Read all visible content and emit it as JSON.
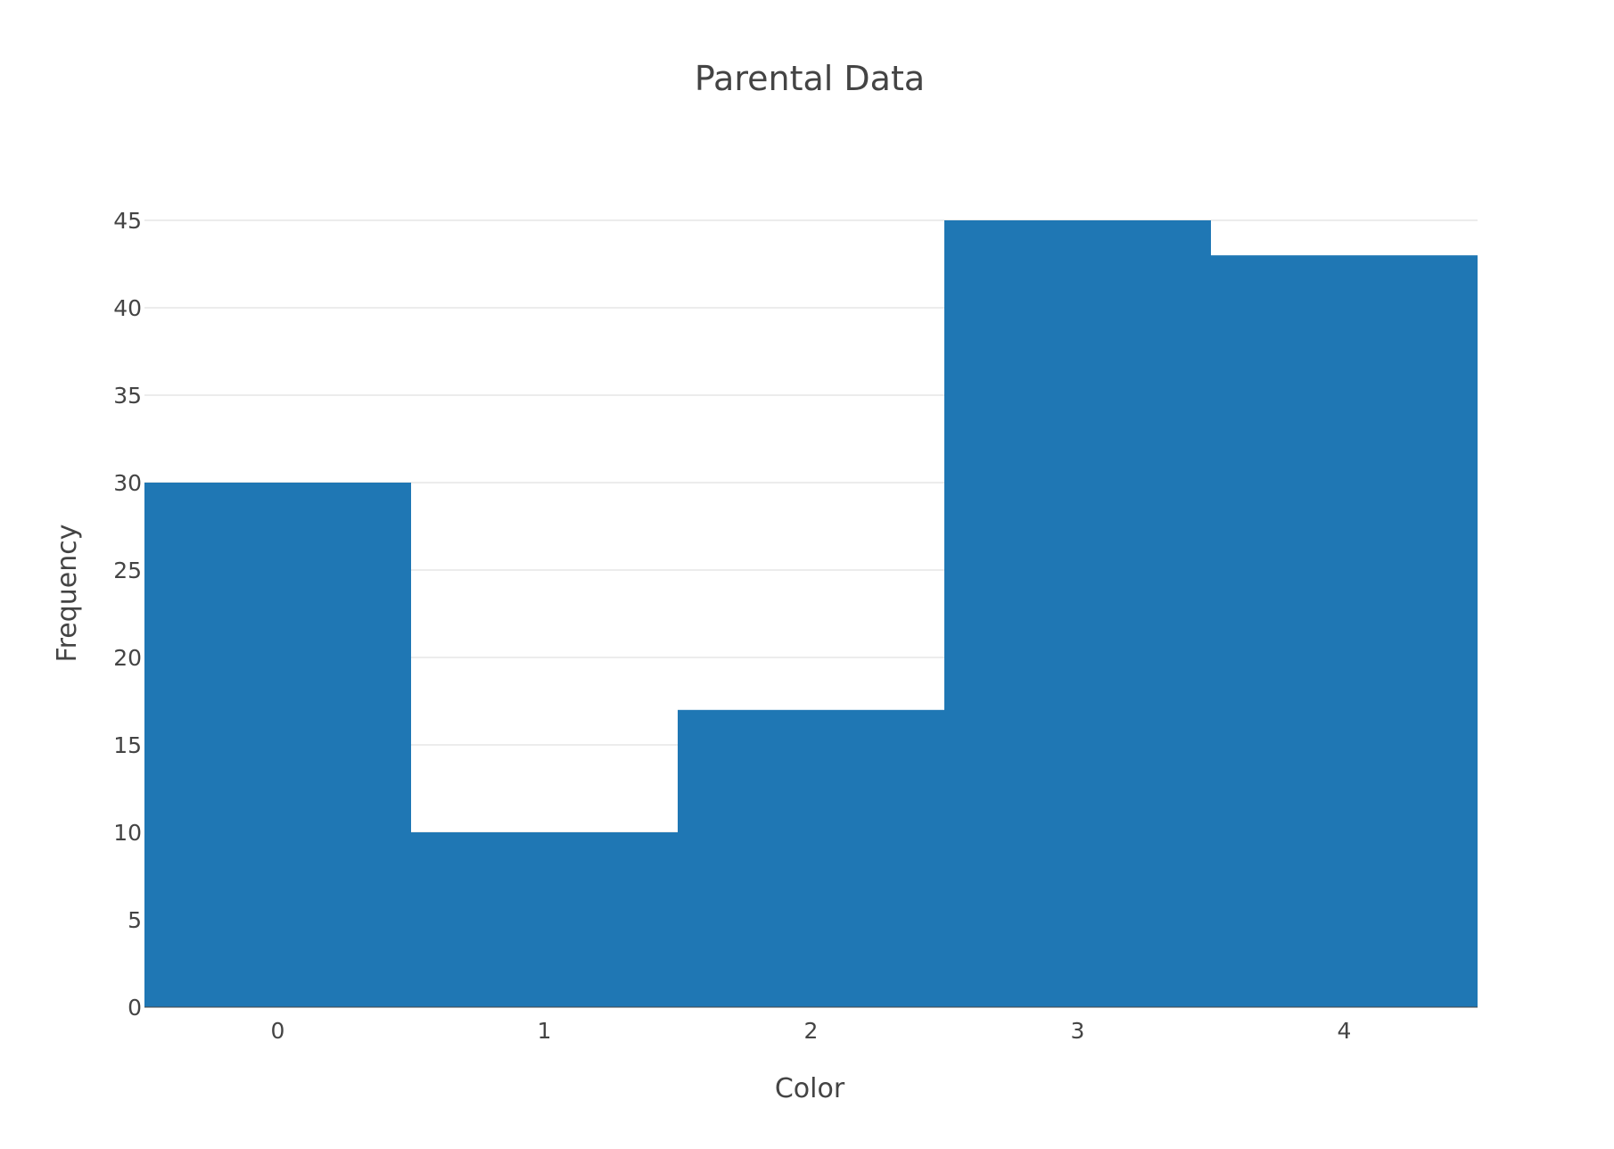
{
  "chart_data": {
    "type": "bar",
    "title": "Parental Data",
    "xlabel": "Color",
    "ylabel": "Frequency",
    "categories": [
      "0",
      "1",
      "2",
      "3",
      "4"
    ],
    "values": [
      30,
      10,
      17,
      45,
      43
    ],
    "ylim": [
      0,
      45
    ],
    "yticks": [
      "0",
      "5",
      "10",
      "15",
      "20",
      "25",
      "30",
      "35",
      "40",
      "45"
    ],
    "grid": true,
    "legend": "none",
    "bar_color": "#1f77b4",
    "grid_color": "#e5e5e5",
    "text_color": "#444444"
  }
}
